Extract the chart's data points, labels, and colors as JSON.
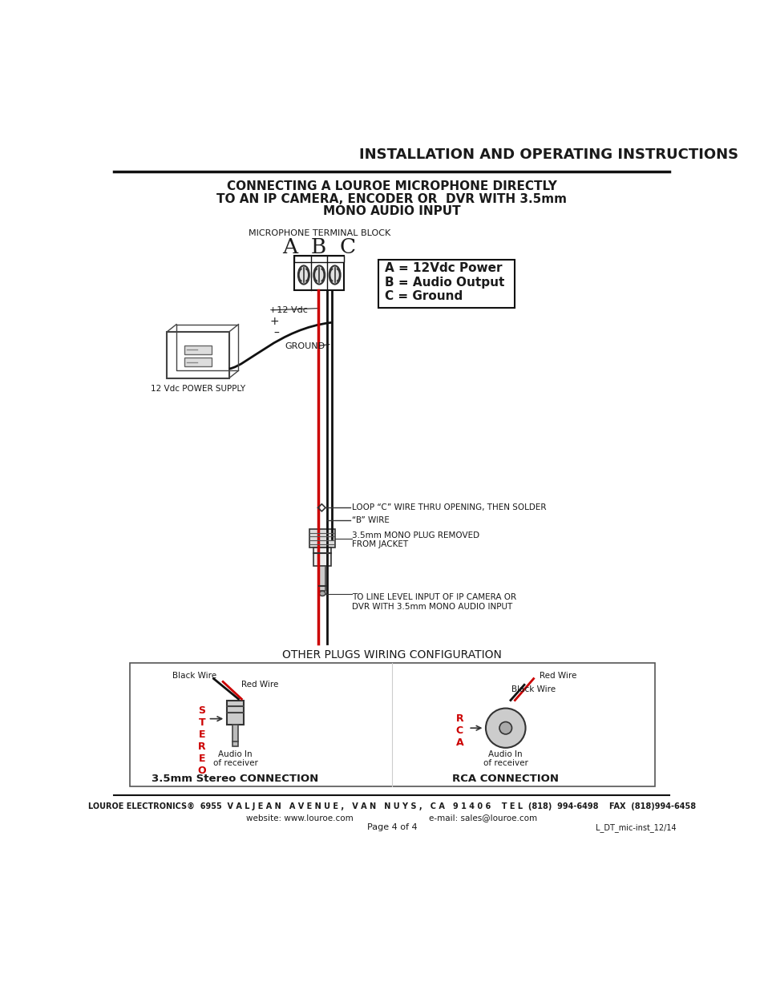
{
  "page_title": "INSTALLATION AND OPERATING INSTRUCTIONS",
  "subtitle_line1": "CONNECTING A LOUROE MICROPHONE DIRECTLY",
  "subtitle_line2": "TO AN IP CAMERA, ENCODER OR  DVR WITH 3.5mm",
  "subtitle_line3": "MONO AUDIO INPUT",
  "terminal_label": "MICROPHONE TERMINAL BLOCK",
  "abc_label": "A  B  C",
  "legend_lines": [
    "A = 12Vdc Power",
    "B = Audio Output",
    "C = Ground"
  ],
  "power_supply_label": "12 Vdc POWER SUPPLY",
  "plus_label": "+",
  "minus_label": "–",
  "plus12v_label": "+12 Vdc",
  "ground_label": "GROUND",
  "loop_label": "LOOP “C” WIRE THRU OPENING, THEN SOLDER",
  "b_wire_label": "“B” WIRE",
  "plug_label": "3.5mm MONO PLUG REMOVED\nFROM JACKET",
  "line_level_label": "TO LINE LEVEL INPUT OF IP CAMERA OR\nDVR WITH 3.5mm MONO AUDIO INPUT",
  "other_plugs_title": "OTHER PLUGS WIRING CONFIGURATION",
  "stereo_label": "3.5mm Stereo CONNECTION",
  "rca_label": "RCA CONNECTION",
  "stereo_letters": "S\nT\nE\nR\nE\nO",
  "rca_letters": "R\nC\nA",
  "black_wire": "Black Wire",
  "red_wire": "Red Wire",
  "audio_in": "Audio In\nof receiver",
  "footer_line1": "LOUROE ELECTRONICS®  6955  V A L J E A N   A V E N U E ,   V A N   N U Y S ,   C A   9 1 4 0 6    T E L  (818)  994-6498    FAX  (818)994-6458",
  "footer_line2": "website: www.louroe.com                             e-mail: sales@louroe.com",
  "footer_page": "Page 4 of 4",
  "footer_doc": "L_DT_mic-inst_12/14",
  "bg_color": "#ffffff",
  "text_color": "#1a1a1a",
  "red_wire_color": "#cc0000",
  "black_wire_color": "#111111"
}
